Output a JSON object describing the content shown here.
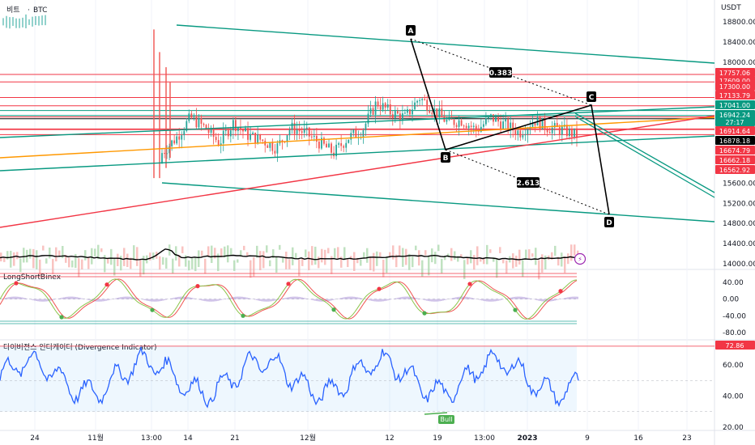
{
  "header": {
    "symbol": "비트",
    "separator": "·",
    "market": "BTC"
  },
  "colors": {
    "up": "#26a69a",
    "down": "#ef5350",
    "resistance": "#f23645",
    "trend": "#089981",
    "orange": "#ff9800",
    "black": "#000000",
    "blue": "#2962ff",
    "cci_line": "#2962ff"
  },
  "chart_data": [
    {
      "type": "candlestick",
      "axis": {
        "unit": "USDT",
        "ylim": [
          14000,
          19000
        ],
        "ticks": [
          "18800.00",
          "18400.00",
          "18000.00",
          "15600.00",
          "15200.00",
          "14800.00",
          "14400.00",
          "14000.00"
        ]
      },
      "x_labels": [
        "24",
        "11월",
        "13:00",
        "14",
        "21",
        "12월",
        "12",
        "19",
        "13:00",
        "2023",
        "9",
        "16",
        "23"
      ],
      "price_levels": [
        {
          "label": "17757.06",
          "value": 17757.06,
          "color": "#f23645"
        },
        {
          "label": "17609.00",
          "value": 17609.0,
          "color": "#f23645"
        },
        {
          "label": "17300.00",
          "value": 17300.0,
          "color": "#f23645"
        },
        {
          "label": "17133.79",
          "value": 17133.79,
          "color": "#f23645"
        },
        {
          "label": "17041.00",
          "value": 17041.0,
          "color": "#089981"
        },
        {
          "label": "16942.24",
          "value": 16942.24,
          "color": "#089981"
        },
        {
          "label": "27:17",
          "value": 16850,
          "color": "#089981"
        },
        {
          "label": "16914.64",
          "value": 16914.64,
          "color": "#f23645"
        },
        {
          "label": "16878.18",
          "value": 16878.18,
          "color": "#000000"
        },
        {
          "label": "16674.79",
          "value": 16674.79,
          "color": "#f23645"
        },
        {
          "label": "16662.18",
          "value": 16662.18,
          "color": "#f23645"
        },
        {
          "label": "16562.92",
          "value": 16562.92,
          "color": "#f23645"
        }
      ],
      "pattern": {
        "points": [
          {
            "name": "A",
            "value": 18420
          },
          {
            "name": "B",
            "value": 16620
          },
          {
            "name": "C",
            "value": 17120
          },
          {
            "name": "D",
            "value": 14850
          }
        ],
        "ratios": [
          "0.383",
          "2.613"
        ]
      },
      "series": [
        {
          "close": [
            16200,
            16500,
            16900,
            16700,
            16400,
            16800,
            16550,
            16450,
            16300,
            16700,
            16600,
            16400,
            16200,
            16500,
            16650,
            17200,
            17000,
            16900,
            17300,
            17050,
            16800,
            16850,
            16650,
            16900,
            16750,
            16600,
            16850,
            16700,
            16650,
            16550
          ]
        }
      ]
    },
    {
      "type": "line",
      "title": "LongShortBinex",
      "axis": {
        "ylim": [
          -80,
          60
        ],
        "ticks": [
          "40.00",
          "0.00",
          "-40.00",
          "-80.00"
        ]
      }
    },
    {
      "type": "line",
      "title": "다이버전스 인디케이터 (Divergence Indicator)",
      "axis": {
        "ylim": [
          20,
          75
        ],
        "ticks": [
          "60.00",
          "40.00",
          "20.00"
        ]
      },
      "current_label": "72.86",
      "annotation": "Bull"
    }
  ]
}
